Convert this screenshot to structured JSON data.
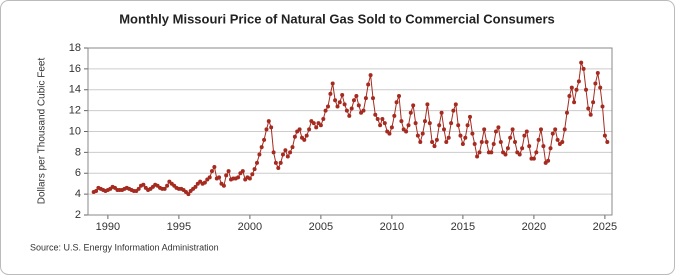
{
  "chart_data": {
    "type": "line",
    "title": "Monthly Missouri Price of Natural Gas Sold to Commercial Consumers",
    "y_label": "Dollars per Thousand Cubic Feet",
    "source": "Source: U.S. Energy Information Administration",
    "xlim": [
      1988.6,
      2025.5
    ],
    "xticks": [
      1990,
      1995,
      2000,
      2005,
      2010,
      2015,
      2020,
      2025
    ],
    "ylim": [
      2,
      18
    ],
    "yticks": [
      2,
      4,
      6,
      8,
      10,
      12,
      14,
      16,
      18
    ],
    "grid": true,
    "x": [
      1989,
      1989.17,
      1989.33,
      1989.5,
      1989.67,
      1989.83,
      1990,
      1990.17,
      1990.33,
      1990.5,
      1990.67,
      1990.83,
      1991,
      1991.17,
      1991.33,
      1991.5,
      1991.67,
      1991.83,
      1992,
      1992.17,
      1992.33,
      1992.5,
      1992.67,
      1992.83,
      1993,
      1993.17,
      1993.33,
      1993.5,
      1993.67,
      1993.83,
      1994,
      1994.17,
      1994.33,
      1994.5,
      1994.67,
      1994.83,
      1995,
      1995.17,
      1995.33,
      1995.5,
      1995.67,
      1995.83,
      1996,
      1996.17,
      1996.33,
      1996.5,
      1996.67,
      1996.83,
      1997,
      1997.17,
      1997.33,
      1997.5,
      1997.67,
      1997.83,
      1998,
      1998.17,
      1998.33,
      1998.5,
      1998.67,
      1998.83,
      1999,
      1999.17,
      1999.33,
      1999.5,
      1999.67,
      1999.83,
      2000,
      2000.17,
      2000.33,
      2000.5,
      2000.67,
      2000.83,
      2001,
      2001.17,
      2001.33,
      2001.5,
      2001.67,
      2001.83,
      2002,
      2002.17,
      2002.33,
      2002.5,
      2002.67,
      2002.83,
      2003,
      2003.17,
      2003.33,
      2003.5,
      2003.67,
      2003.83,
      2004,
      2004.17,
      2004.33,
      2004.5,
      2004.67,
      2004.83,
      2005,
      2005.17,
      2005.33,
      2005.5,
      2005.67,
      2005.83,
      2006,
      2006.17,
      2006.33,
      2006.5,
      2006.67,
      2006.83,
      2007,
      2007.17,
      2007.33,
      2007.5,
      2007.67,
      2007.83,
      2008,
      2008.17,
      2008.33,
      2008.5,
      2008.67,
      2008.83,
      2009,
      2009.17,
      2009.33,
      2009.5,
      2009.67,
      2009.83,
      2010,
      2010.17,
      2010.33,
      2010.5,
      2010.67,
      2010.83,
      2011,
      2011.17,
      2011.33,
      2011.5,
      2011.67,
      2011.83,
      2012,
      2012.17,
      2012.33,
      2012.5,
      2012.67,
      2012.83,
      2013,
      2013.17,
      2013.33,
      2013.5,
      2013.67,
      2013.83,
      2014,
      2014.17,
      2014.33,
      2014.5,
      2014.67,
      2014.83,
      2015,
      2015.17,
      2015.33,
      2015.5,
      2015.67,
      2015.83,
      2016,
      2016.17,
      2016.33,
      2016.5,
      2016.67,
      2016.83,
      2017,
      2017.17,
      2017.33,
      2017.5,
      2017.67,
      2017.83,
      2018,
      2018.17,
      2018.33,
      2018.5,
      2018.67,
      2018.83,
      2019,
      2019.17,
      2019.33,
      2019.5,
      2019.67,
      2019.83,
      2020,
      2020.17,
      2020.33,
      2020.5,
      2020.67,
      2020.83,
      2021,
      2021.17,
      2021.33,
      2021.5,
      2021.67,
      2021.83,
      2022,
      2022.17,
      2022.33,
      2022.5,
      2022.67,
      2022.83,
      2023,
      2023.17,
      2023.33,
      2023.5,
      2023.67,
      2023.83,
      2024,
      2024.17,
      2024.33,
      2024.5,
      2024.67,
      2024.83,
      2025,
      2025.17
    ],
    "series": [
      {
        "color": "#a52a1f",
        "values": [
          4.2,
          4.3,
          4.6,
          4.5,
          4.4,
          4.3,
          4.4,
          4.5,
          4.7,
          4.6,
          4.4,
          4.4,
          4.4,
          4.5,
          4.6,
          4.5,
          4.4,
          4.3,
          4.3,
          4.5,
          4.8,
          4.9,
          4.6,
          4.4,
          4.5,
          4.7,
          4.9,
          4.8,
          4.6,
          4.5,
          4.5,
          4.8,
          5.2,
          5.0,
          4.8,
          4.6,
          4.5,
          4.5,
          4.4,
          4.2,
          4.0,
          4.3,
          4.5,
          4.7,
          5.0,
          5.2,
          5.0,
          5.1,
          5.4,
          5.6,
          6.2,
          6.6,
          5.5,
          5.6,
          5.0,
          4.8,
          5.8,
          6.2,
          5.4,
          5.5,
          5.5,
          5.6,
          6.0,
          6.2,
          5.4,
          5.6,
          5.5,
          5.9,
          6.4,
          7.0,
          7.8,
          8.5,
          9.2,
          10.2,
          11.0,
          10.4,
          8.0,
          7.0,
          6.5,
          7.0,
          7.8,
          8.2,
          7.6,
          8.0,
          8.5,
          9.5,
          10.0,
          10.2,
          9.4,
          9.2,
          9.6,
          10.2,
          11.0,
          10.8,
          10.4,
          10.8,
          10.6,
          11.2,
          12.0,
          12.4,
          13.6,
          14.6,
          13.0,
          12.4,
          12.8,
          13.5,
          12.6,
          12.0,
          11.5,
          12.2,
          13.0,
          13.4,
          12.5,
          11.8,
          12.0,
          13.2,
          14.5,
          15.4,
          13.2,
          11.6,
          11.2,
          10.6,
          11.2,
          10.8,
          10.0,
          9.8,
          10.4,
          11.5,
          12.8,
          13.4,
          11.0,
          10.2,
          10.0,
          10.6,
          11.8,
          12.5,
          10.8,
          9.6,
          9.0,
          9.8,
          11.0,
          12.6,
          10.8,
          9.0,
          8.6,
          9.2,
          10.6,
          11.8,
          10.2,
          9.0,
          9.4,
          10.8,
          12.0,
          12.6,
          10.6,
          9.6,
          8.8,
          9.4,
          10.6,
          11.4,
          9.8,
          8.8,
          7.6,
          8.0,
          9.0,
          10.2,
          9.0,
          8.0,
          8.0,
          8.8,
          10.0,
          10.4,
          9.0,
          8.0,
          7.8,
          8.4,
          9.4,
          10.2,
          9.0,
          8.0,
          7.8,
          8.4,
          9.6,
          10.0,
          8.6,
          7.4,
          7.4,
          8.0,
          9.2,
          10.2,
          8.6,
          7.0,
          7.2,
          8.4,
          9.8,
          10.2,
          9.2,
          8.8,
          9.0,
          10.2,
          11.8,
          13.4,
          14.2,
          12.8,
          14.0,
          14.8,
          16.6,
          16.0,
          14.0,
          12.2,
          11.6,
          12.8,
          14.6,
          15.6,
          14.2,
          12.4,
          9.6,
          9.0
        ]
      }
    ]
  }
}
